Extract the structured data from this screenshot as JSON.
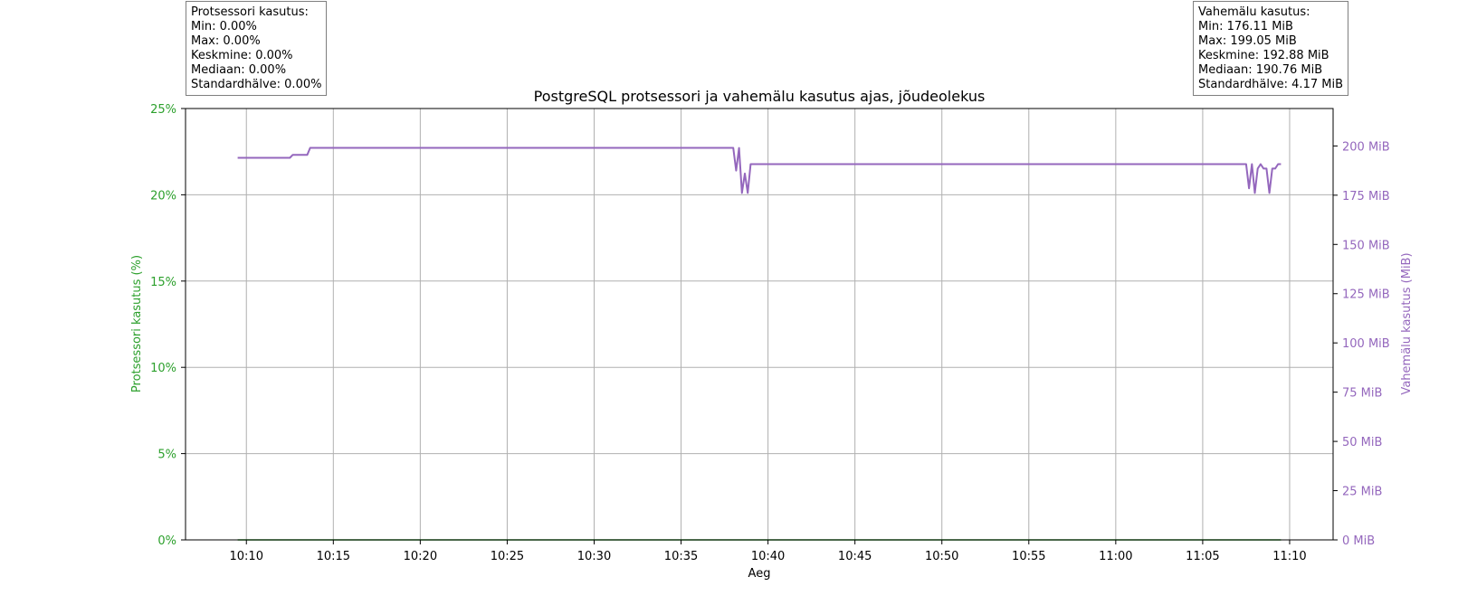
{
  "cpu_stats": {
    "title": "Protsessori kasutus:",
    "min": "Min: 0.00%",
    "max": "Max: 0.00%",
    "mean": "Keskmine: 0.00%",
    "median": "Mediaan: 0.00%",
    "std": "Standardhälve: 0.00%"
  },
  "cache_stats": {
    "title": "Vahemälu kasutus:",
    "min": "Min: 176.11 MiB",
    "max": "Max: 199.05 MiB",
    "mean": "Keskmine: 192.88 MiB",
    "median": "Mediaan: 190.76 MiB",
    "std": "Standardhälve: 4.17 MiB"
  },
  "colors": {
    "cpu": "#2ca02c",
    "cache": "#9467bd",
    "grid": "#b0b0b0"
  },
  "chart_data": {
    "type": "line",
    "title": "PostgreSQL protsessori ja vahemälu kasutus ajas, jõudeolekus",
    "xlabel": "Aeg",
    "ylabel_left": "Protsessori kasutus (%)",
    "ylabel_right": "Vahemälu kasutus (MiB)",
    "xlim": [
      "10:06:30",
      "11:12:30"
    ],
    "x_ticks": [
      "10:10",
      "10:15",
      "10:20",
      "10:25",
      "10:30",
      "10:35",
      "10:40",
      "10:45",
      "10:50",
      "10:55",
      "11:00",
      "11:05",
      "11:10"
    ],
    "ylim_left": [
      0,
      25
    ],
    "y_ticks_left": [
      "0%",
      "5%",
      "10%",
      "15%",
      "20%",
      "25%"
    ],
    "ylim_right": [
      0,
      219
    ],
    "y_ticks_right": [
      "0 MiB",
      "25 MiB",
      "50 MiB",
      "75 MiB",
      "100 MiB",
      "125 MiB",
      "150 MiB",
      "175 MiB",
      "200 MiB"
    ],
    "grid": true,
    "series": [
      {
        "name": "Protsessori kasutus",
        "axis": "left",
        "x": [
          "10:09:30",
          "11:09:30"
        ],
        "y": [
          0,
          0
        ]
      },
      {
        "name": "Vahemälu kasutus",
        "axis": "right",
        "x": [
          "10:09:30",
          "10:12:30",
          "10:12:40",
          "10:13:30",
          "10:13:40",
          "10:38:00",
          "10:38:10",
          "10:38:20",
          "10:38:30",
          "10:38:40",
          "10:38:50",
          "10:39:00",
          "10:39:10",
          "10:39:20",
          "11:07:30",
          "11:07:40",
          "11:07:50",
          "11:08:00",
          "11:08:10",
          "11:08:20",
          "11:08:30",
          "11:08:40",
          "11:08:50",
          "11:09:00",
          "11:09:10",
          "11:09:20",
          "11:09:30"
        ],
        "y": [
          194.0,
          194.0,
          195.5,
          195.5,
          199.05,
          199.05,
          187.5,
          199.0,
          176.11,
          186.0,
          176.11,
          190.76,
          190.76,
          190.76,
          190.76,
          178.5,
          190.76,
          176.11,
          188.5,
          190.76,
          188.5,
          188.5,
          176.11,
          188.5,
          188.5,
          190.76,
          190.76
        ]
      }
    ]
  }
}
